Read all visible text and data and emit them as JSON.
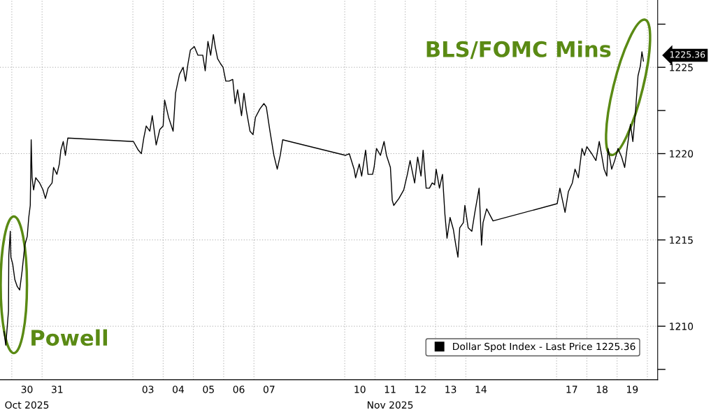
{
  "chart_data": {
    "type": "line",
    "x": [
      "2025-10-29T17:46",
      "2025-10-29T19:12",
      "2025-10-29T20:24",
      "2025-10-29T21:22",
      "2025-10-29T21:36",
      "2025-10-29T22:48",
      "2025-10-29T23:17",
      "2025-10-30T00:43",
      "2025-10-30T02:24",
      "2025-10-30T04:19",
      "2025-10-30T06:14",
      "2025-10-30T08:10",
      "2025-10-30T10:19",
      "2025-10-30T12:14",
      "2025-10-30T13:26",
      "2025-10-30T14:38",
      "2025-10-30T15:22",
      "2025-10-30T16:05",
      "2025-10-30T17:17",
      "2025-10-30T18:58",
      "2025-10-30T22:05",
      "2025-10-31T00:43",
      "2025-10-31T02:38",
      "2025-10-31T04:48",
      "2025-10-31T07:55",
      "2025-10-31T09:07",
      "2025-10-31T11:46",
      "2025-10-31T13:41",
      "2025-10-31T14:53",
      "2025-10-31T16:48",
      "2025-10-31T18:29",
      "2025-10-31T20:24",
      "2025-11-03T00:29",
      "2025-11-03T04:19",
      "2025-11-03T06:43",
      "2025-11-03T08:38",
      "2025-11-03T10:34",
      "2025-11-03T13:26",
      "2025-11-03T15:22",
      "2025-11-03T18:29",
      "2025-11-03T21:22",
      "2025-11-04T00:00",
      "2025-11-04T01:12",
      "2025-11-04T04:19",
      "2025-11-04T07:55",
      "2025-11-04T09:50",
      "2025-11-04T12:58",
      "2025-11-04T15:50",
      "2025-11-04T17:46",
      "2025-11-04T19:41",
      "2025-11-04T21:36",
      "2025-11-05T00:43",
      "2025-11-05T03:36",
      "2025-11-05T07:26",
      "2025-11-05T09:22",
      "2025-11-05T11:31",
      "2025-11-05T13:41",
      "2025-11-05T15:50",
      "2025-11-05T17:17",
      "2025-11-05T19:12",
      "2025-11-05T21:36",
      "2025-11-05T23:31",
      "2025-11-06T01:41",
      "2025-11-06T04:19",
      "2025-11-06T07:12",
      "2025-11-06T09:07",
      "2025-11-06T11:02",
      "2025-11-06T14:10",
      "2025-11-06T16:05",
      "2025-11-06T18:00",
      "2025-11-06T20:53",
      "2025-11-06T23:17",
      "2025-11-07T01:12",
      "2025-11-07T04:48",
      "2025-11-07T07:55",
      "2025-11-07T09:50",
      "2025-11-07T12:29",
      "2025-11-07T15:50",
      "2025-11-07T18:29",
      "2025-11-07T20:53",
      "2025-11-07T22:48",
      "2025-11-10T00:43",
      "2025-11-10T03:36",
      "2025-11-10T07:26",
      "2025-11-10T08:38",
      "2025-11-10T11:31",
      "2025-11-10T13:26",
      "2025-11-10T16:34",
      "2025-11-10T18:29",
      "2025-11-10T22:05",
      "2025-11-10T23:17",
      "2025-11-11T01:12",
      "2025-11-11T04:19",
      "2025-11-11T07:12",
      "2025-11-11T09:07",
      "2025-11-11T12:14",
      "2025-11-11T13:41",
      "2025-11-11T14:53",
      "2025-11-11T18:58",
      "2025-11-11T22:48",
      "2025-11-12T01:41",
      "2025-11-12T03:50",
      "2025-11-12T07:26",
      "2025-11-12T09:50",
      "2025-11-12T12:29",
      "2025-11-12T14:10",
      "2025-11-12T16:34",
      "2025-11-12T19:12",
      "2025-11-12T21:22",
      "2025-11-12T23:17",
      "2025-11-13T00:29",
      "2025-11-13T03:07",
      "2025-11-13T05:31",
      "2025-11-13T07:26",
      "2025-11-13T09:07",
      "2025-11-13T11:31",
      "2025-11-13T14:10",
      "2025-11-13T16:05",
      "2025-11-13T17:46",
      "2025-11-13T19:12",
      "2025-11-13T22:05",
      "2025-11-13T23:17",
      "2025-11-14T01:55",
      "2025-11-14T04:48",
      "2025-11-14T07:12",
      "2025-11-14T10:34",
      "2025-11-14T12:29",
      "2025-11-14T13:41",
      "2025-11-14T16:34",
      "2025-11-14T21:36",
      "2025-11-17T00:29",
      "2025-11-17T02:38",
      "2025-11-17T06:43",
      "2025-11-17T09:22",
      "2025-11-17T12:29",
      "2025-11-17T14:38",
      "2025-11-17T17:17",
      "2025-11-17T20:10",
      "2025-11-17T22:05",
      "2025-11-18T00:00",
      "2025-11-18T03:50",
      "2025-11-18T07:12",
      "2025-11-18T09:50",
      "2025-11-18T13:41",
      "2025-11-18T15:50",
      "2025-11-18T16:48",
      "2025-11-18T19:41",
      "2025-11-18T22:05",
      "2025-11-19T00:43",
      "2025-11-19T03:36",
      "2025-11-19T06:00",
      "2025-11-19T07:55",
      "2025-11-19T10:34",
      "2025-11-19T12:29",
      "2025-11-19T14:38",
      "2025-11-19T16:34",
      "2025-11-19T18:29",
      "2025-11-19T19:41",
      "2025-11-19T20:53"
    ],
    "series": [
      {
        "name": "Dollar Spot Index - Last Price 1225.36",
        "color": "#000000",
        "values": [
          1209.7,
          1208.9,
          1210.0,
          1210.9,
          1214.1,
          1215.5,
          1214.0,
          1213.6,
          1212.7,
          1212.3,
          1212.1,
          1213.2,
          1214.7,
          1215.2,
          1216.3,
          1217.0,
          1220.8,
          1218.6,
          1217.9,
          1218.6,
          1218.3,
          1217.9,
          1217.4,
          1218.0,
          1218.3,
          1219.2,
          1218.8,
          1219.4,
          1220.2,
          1220.7,
          1219.9,
          1220.9,
          1220.7,
          1220.2,
          1220.0,
          1220.9,
          1221.6,
          1221.3,
          1222.2,
          1220.5,
          1221.4,
          1221.6,
          1223.1,
          1222.1,
          1221.3,
          1223.5,
          1224.6,
          1225.0,
          1224.2,
          1225.2,
          1226.0,
          1226.2,
          1225.7,
          1225.7,
          1224.8,
          1226.5,
          1225.7,
          1226.9,
          1226.2,
          1225.5,
          1225.2,
          1225.0,
          1224.2,
          1224.2,
          1224.3,
          1222.9,
          1223.7,
          1222.2,
          1223.5,
          1222.5,
          1221.3,
          1221.1,
          1222.1,
          1222.6,
          1222.9,
          1222.7,
          1221.4,
          1219.9,
          1219.1,
          1219.9,
          1220.8,
          1219.9,
          1220.0,
          1219.1,
          1218.6,
          1219.4,
          1218.7,
          1220.2,
          1218.8,
          1218.8,
          1219.2,
          1220.3,
          1219.9,
          1220.7,
          1219.9,
          1219.2,
          1217.3,
          1217.0,
          1217.4,
          1217.9,
          1218.8,
          1219.6,
          1218.3,
          1219.8,
          1218.7,
          1220.2,
          1218.0,
          1218.0,
          1218.3,
          1218.2,
          1219.1,
          1218.0,
          1218.8,
          1216.5,
          1215.1,
          1216.3,
          1215.6,
          1214.7,
          1214.0,
          1215.7,
          1216.0,
          1217.0,
          1215.7,
          1215.5,
          1216.6,
          1218.0,
          1214.7,
          1216.0,
          1216.8,
          1216.1,
          1217.1,
          1218.0,
          1216.6,
          1217.8,
          1218.3,
          1219.1,
          1218.6,
          1220.3,
          1219.9,
          1220.4,
          1220.0,
          1219.6,
          1220.7,
          1219.1,
          1218.7,
          1220.3,
          1219.1,
          1219.6,
          1220.3,
          1219.8,
          1219.2,
          1220.3,
          1221.7,
          1220.7,
          1222.5,
          1224.5,
          1225.1,
          1225.9,
          1225.36
        ]
      }
    ],
    "xlim": [
      "2025-10-29T14:38",
      "2025-11-20T08:10"
    ],
    "xticks": [
      {
        "value": "2025-10-30",
        "label": null
      },
      {
        "value": "2025-10-30T12:00",
        "label": "30"
      },
      {
        "value": "2025-10-31",
        "label": null
      },
      {
        "value": "2025-10-31T12:00",
        "label": "31"
      },
      {
        "value": "2025-11-03",
        "label": null
      },
      {
        "value": "2025-11-03T12:00",
        "label": "03"
      },
      {
        "value": "2025-11-04",
        "label": null
      },
      {
        "value": "2025-11-04T12:00",
        "label": "04"
      },
      {
        "value": "2025-11-05",
        "label": null
      },
      {
        "value": "2025-11-05T12:00",
        "label": "05"
      },
      {
        "value": "2025-11-06",
        "label": null
      },
      {
        "value": "2025-11-06T12:00",
        "label": "06"
      },
      {
        "value": "2025-11-07",
        "label": null
      },
      {
        "value": "2025-11-07T12:00",
        "label": "07"
      },
      {
        "value": "2025-11-10",
        "label": null
      },
      {
        "value": "2025-11-10T12:00",
        "label": "10"
      },
      {
        "value": "2025-11-11",
        "label": null
      },
      {
        "value": "2025-11-11T12:00",
        "label": "11"
      },
      {
        "value": "2025-11-12",
        "label": null
      },
      {
        "value": "2025-11-12T12:00",
        "label": "12"
      },
      {
        "value": "2025-11-13",
        "label": null
      },
      {
        "value": "2025-11-13T12:00",
        "label": "13"
      },
      {
        "value": "2025-11-14",
        "label": null
      },
      {
        "value": "2025-11-14T12:00",
        "label": "14"
      },
      {
        "value": "2025-11-17",
        "label": null
      },
      {
        "value": "2025-11-17T12:00",
        "label": "17"
      },
      {
        "value": "2025-11-18",
        "label": null
      },
      {
        "value": "2025-11-18T12:00",
        "label": "18"
      },
      {
        "value": "2025-11-19",
        "label": null
      },
      {
        "value": "2025-11-19T12:00",
        "label": "19"
      },
      {
        "value": "2025-11-20",
        "label": null
      }
    ],
    "ylim": [
      1206.9,
      1228.9
    ],
    "yticks": [
      {
        "value": 1207.5,
        "label": null
      },
      1210,
      {
        "value": 1212.5,
        "label": null
      },
      1215,
      {
        "value": 1217.5,
        "label": null
      },
      1220,
      {
        "value": 1222.5,
        "label": null
      },
      1225,
      {
        "value": 1227.5,
        "label": null
      }
    ],
    "grid": true,
    "legend": "bottom right",
    "annotations": [
      "Powell",
      "BLS/FOMC Mins",
      "Oct 2025",
      "Nov 2025",
      "1225.36"
    ]
  }
}
